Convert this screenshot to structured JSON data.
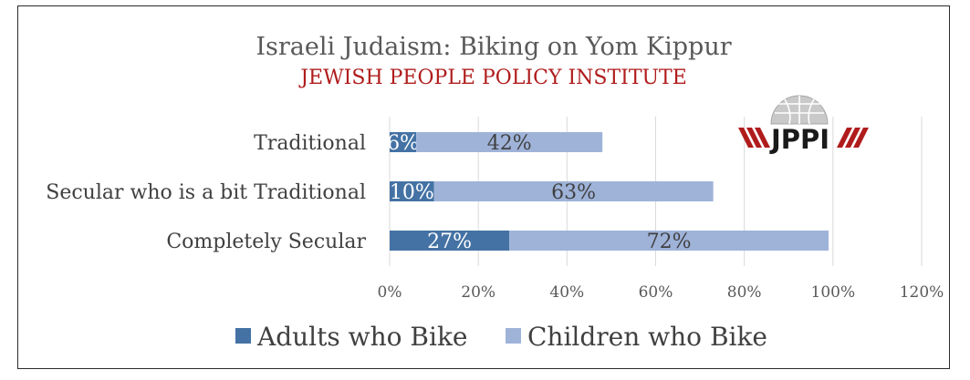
{
  "chart_data": {
    "type": "bar",
    "orientation": "horizontal",
    "stacked": true,
    "title": "Israeli Judaism: Biking on Yom Kippur",
    "subtitle": "JEWISH PEOPLE POLICY INSTITUTE",
    "categories": [
      "Traditional",
      "Secular who is a bit Traditional",
      "Completely Secular"
    ],
    "series": [
      {
        "name": "Adults who Bike",
        "values": [
          6,
          10,
          27
        ],
        "labels": [
          "6%",
          "10%",
          "27%"
        ],
        "color": "#4472a4"
      },
      {
        "name": "Children who Bike",
        "values": [
          42,
          63,
          72
        ],
        "labels": [
          "42%",
          "63%",
          "72%"
        ],
        "color": "#9fb3d9"
      }
    ],
    "xlim": [
      0,
      120
    ],
    "xticks": [
      0,
      20,
      40,
      60,
      80,
      100,
      120
    ],
    "xtick_labels": [
      "0%",
      "20%",
      "40%",
      "60%",
      "80%",
      "100%",
      "120%"
    ],
    "grid": true,
    "legend_position": "bottom"
  },
  "logo": {
    "text": "JPPI",
    "name": "JPPI logo"
  },
  "colors": {
    "title": "#595959",
    "subtitle": "#b01c1c",
    "grid": "#d9d9d9",
    "text": "#404040"
  }
}
